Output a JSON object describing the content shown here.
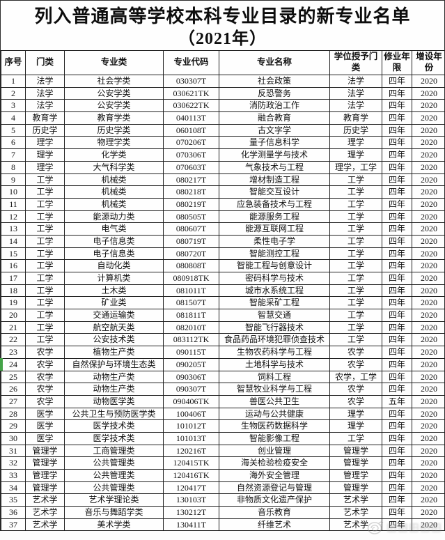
{
  "title": {
    "line1": "列入普通高等学校本科专业目录的新专业名单",
    "line2": "（2021年）"
  },
  "table": {
    "columns": [
      "序号",
      "门类",
      "专业类",
      "专业代码",
      "专业名称",
      "学位授予门类",
      "修业年限",
      "增设年份"
    ],
    "col_keys": [
      "index",
      "category",
      "major-class",
      "major-code",
      "major-name",
      "degree-category",
      "duration",
      "year-added"
    ],
    "rows": [
      [
        "1",
        "法学",
        "社会学类",
        "030307T",
        "社会政策",
        "法学",
        "四年",
        "2020"
      ],
      [
        "2",
        "法学",
        "公安学类",
        "030621TK",
        "反恐警务",
        "法学",
        "四年",
        "2020"
      ],
      [
        "3",
        "法学",
        "公安学类",
        "030622TK",
        "消防政治工作",
        "法学",
        "四年",
        "2020"
      ],
      [
        "4",
        "教育学",
        "教育学类",
        "040113T",
        "融合教育",
        "教育学",
        "四年",
        "2020"
      ],
      [
        "5",
        "历史学",
        "历史学类",
        "060108T",
        "古文字学",
        "历史学",
        "四年",
        "2020"
      ],
      [
        "6",
        "理学",
        "物理学类",
        "070206T",
        "量子信息科学",
        "理学",
        "四年",
        "2020"
      ],
      [
        "7",
        "理学",
        "化学类",
        "070306T",
        "化学测量学与技术",
        "理学",
        "四年",
        "2020"
      ],
      [
        "8",
        "理学",
        "大气科学类",
        "070603T",
        "气象技术与工程",
        "理学，工学",
        "四年",
        "2020"
      ],
      [
        "9",
        "工学",
        "机械类",
        "080217T",
        "增材制造工程",
        "工学",
        "四年",
        "2020"
      ],
      [
        "10",
        "工学",
        "机械类",
        "080218T",
        "智能交互设计",
        "工学",
        "四年",
        "2020"
      ],
      [
        "11",
        "工学",
        "机械类",
        "080219T",
        "应急装备技术与工程",
        "工学",
        "四年",
        "2020"
      ],
      [
        "12",
        "工学",
        "能源动力类",
        "080505T",
        "能源服务工程",
        "工学",
        "四年",
        "2020"
      ],
      [
        "13",
        "工学",
        "电气类",
        "080607T",
        "能源互联网工程",
        "工学",
        "四年",
        "2020"
      ],
      [
        "14",
        "工学",
        "电子信息类",
        "080719T",
        "柔性电子学",
        "工学",
        "四年",
        "2020"
      ],
      [
        "15",
        "工学",
        "电子信息类",
        "080720T",
        "智能测控工程",
        "工学",
        "四年",
        "2020"
      ],
      [
        "16",
        "工学",
        "自动化类",
        "080808T",
        "智能工程与创意设计",
        "工学",
        "四年",
        "2020"
      ],
      [
        "17",
        "工学",
        "计算机类",
        "080918TK",
        "密码科学与技术",
        "工学",
        "四年",
        "2020"
      ],
      [
        "18",
        "工学",
        "土木类",
        "081011T",
        "城市水系统工程",
        "工学",
        "四年",
        "2020"
      ],
      [
        "19",
        "工学",
        "矿业类",
        "081507T",
        "智能采矿工程",
        "工学",
        "四年",
        "2020"
      ],
      [
        "20",
        "工学",
        "交通运输类",
        "081811T",
        "智慧交通",
        "工学",
        "四年",
        "2020"
      ],
      [
        "21",
        "工学",
        "航空航天类",
        "082010T",
        "智能飞行器技术",
        "工学",
        "四年",
        "2020"
      ],
      [
        "22",
        "工学",
        "公安技术类",
        "083112TK",
        "食品药品环境犯罪侦查技术",
        "工学",
        "四年",
        "2020"
      ],
      [
        "23",
        "农学",
        "植物生产类",
        "090115T",
        "生物农药科学与工程",
        "农学",
        "四年",
        "2020"
      ],
      [
        "24",
        "农学",
        "自然保护与环境生态类",
        "090205T",
        "土地科学与技术",
        "农学",
        "四年",
        "2020"
      ],
      [
        "25",
        "农学",
        "动物生产类",
        "090306T",
        "饲料工程",
        "农学，工学",
        "四年",
        "2020"
      ],
      [
        "26",
        "农学",
        "动物生产类",
        "090307T",
        "智慧牧业科学与工程",
        "农学",
        "四年",
        "2020"
      ],
      [
        "27",
        "农学",
        "动物医学类",
        "090406TK",
        "兽医公共卫生",
        "农学",
        "五年",
        "2020"
      ],
      [
        "28",
        "医学",
        "公共卫生与预防医学类",
        "100406T",
        "运动与公共健康",
        "理学",
        "四年",
        "2020"
      ],
      [
        "29",
        "医学",
        "医学技术类",
        "101012T",
        "生物医药数据科学",
        "理学",
        "四年",
        "2020"
      ],
      [
        "30",
        "医学",
        "医学技术类",
        "101013T",
        "智能影像工程",
        "工学",
        "四年",
        "2020"
      ],
      [
        "31",
        "管理学",
        "工商管理类",
        "120216T",
        "创业管理",
        "管理学",
        "四年",
        "2020"
      ],
      [
        "32",
        "管理学",
        "公共管理类",
        "120415TK",
        "海关检验检疫安全",
        "管理学",
        "四年",
        "2020"
      ],
      [
        "33",
        "管理学",
        "公共管理类",
        "120416TK",
        "海外安全管理",
        "管理学",
        "四年",
        "2020"
      ],
      [
        "34",
        "管理学",
        "公共管理类",
        "120417T",
        "自然资源登记与管理",
        "管理学",
        "四年",
        "2020"
      ],
      [
        "35",
        "艺术学",
        "艺术学理论类",
        "130103T",
        "非物质文化遗产保护",
        "艺术学",
        "四年",
        "2020"
      ],
      [
        "36",
        "艺术学",
        "音乐与舞蹈学类",
        "130212T",
        "音乐教育",
        "艺术学",
        "四年",
        "2020"
      ],
      [
        "37",
        "艺术学",
        "美术学类",
        "130411T",
        "纤维艺术",
        "艺术学",
        "四年",
        "2020"
      ]
    ]
  },
  "colors": {
    "row_marker_green": "#44a348",
    "border": "#1f1f1f",
    "text": "#111111"
  },
  "watermark_icon": "weibo-swirl-logo"
}
